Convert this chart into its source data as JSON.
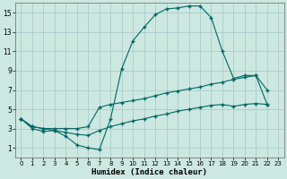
{
  "xlabel": "Humidex (Indice chaleur)",
  "background_color": "#cce8e0",
  "grid_color": "#aacccc",
  "line_color": "#006666",
  "xlim": [
    -0.5,
    23.5
  ],
  "ylim": [
    0,
    16
  ],
  "xticks": [
    0,
    1,
    2,
    3,
    4,
    5,
    6,
    7,
    8,
    9,
    10,
    11,
    12,
    13,
    14,
    15,
    16,
    17,
    18,
    19,
    20,
    21,
    22,
    23
  ],
  "yticks": [
    1,
    3,
    5,
    7,
    9,
    11,
    13,
    15
  ],
  "line1_x": [
    0,
    1,
    2,
    3,
    4,
    5,
    6,
    7,
    8,
    9,
    10,
    11,
    12,
    13,
    14,
    15,
    16,
    17,
    18,
    19,
    20,
    21,
    22
  ],
  "line1_y": [
    4,
    3,
    2.7,
    2.8,
    2.2,
    1.3,
    1.0,
    0.8,
    4.0,
    9.2,
    12.1,
    13.5,
    14.8,
    15.4,
    15.5,
    15.7,
    15.7,
    14.5,
    11.0,
    8.2,
    8.5,
    8.5,
    7.0
  ],
  "line2_x": [
    0,
    1,
    2,
    3,
    4,
    5,
    6,
    7,
    8,
    9,
    10,
    11,
    12,
    13,
    14,
    15,
    16,
    17,
    18,
    19,
    20,
    21,
    22
  ],
  "line2_y": [
    4,
    3.2,
    3.0,
    3.0,
    3.0,
    3.0,
    3.2,
    5.2,
    5.5,
    5.7,
    5.9,
    6.1,
    6.4,
    6.7,
    6.9,
    7.1,
    7.3,
    7.6,
    7.8,
    8.1,
    8.3,
    8.5,
    5.5
  ],
  "line3_x": [
    0,
    1,
    2,
    3,
    4,
    5,
    6,
    7,
    8,
    9,
    10,
    11,
    12,
    13,
    14,
    15,
    16,
    17,
    18,
    19,
    20,
    21,
    22
  ],
  "line3_y": [
    4,
    3.2,
    3.0,
    2.8,
    2.6,
    2.4,
    2.3,
    2.8,
    3.2,
    3.5,
    3.8,
    4.0,
    4.3,
    4.5,
    4.8,
    5.0,
    5.2,
    5.4,
    5.5,
    5.3,
    5.5,
    5.6,
    5.5
  ]
}
